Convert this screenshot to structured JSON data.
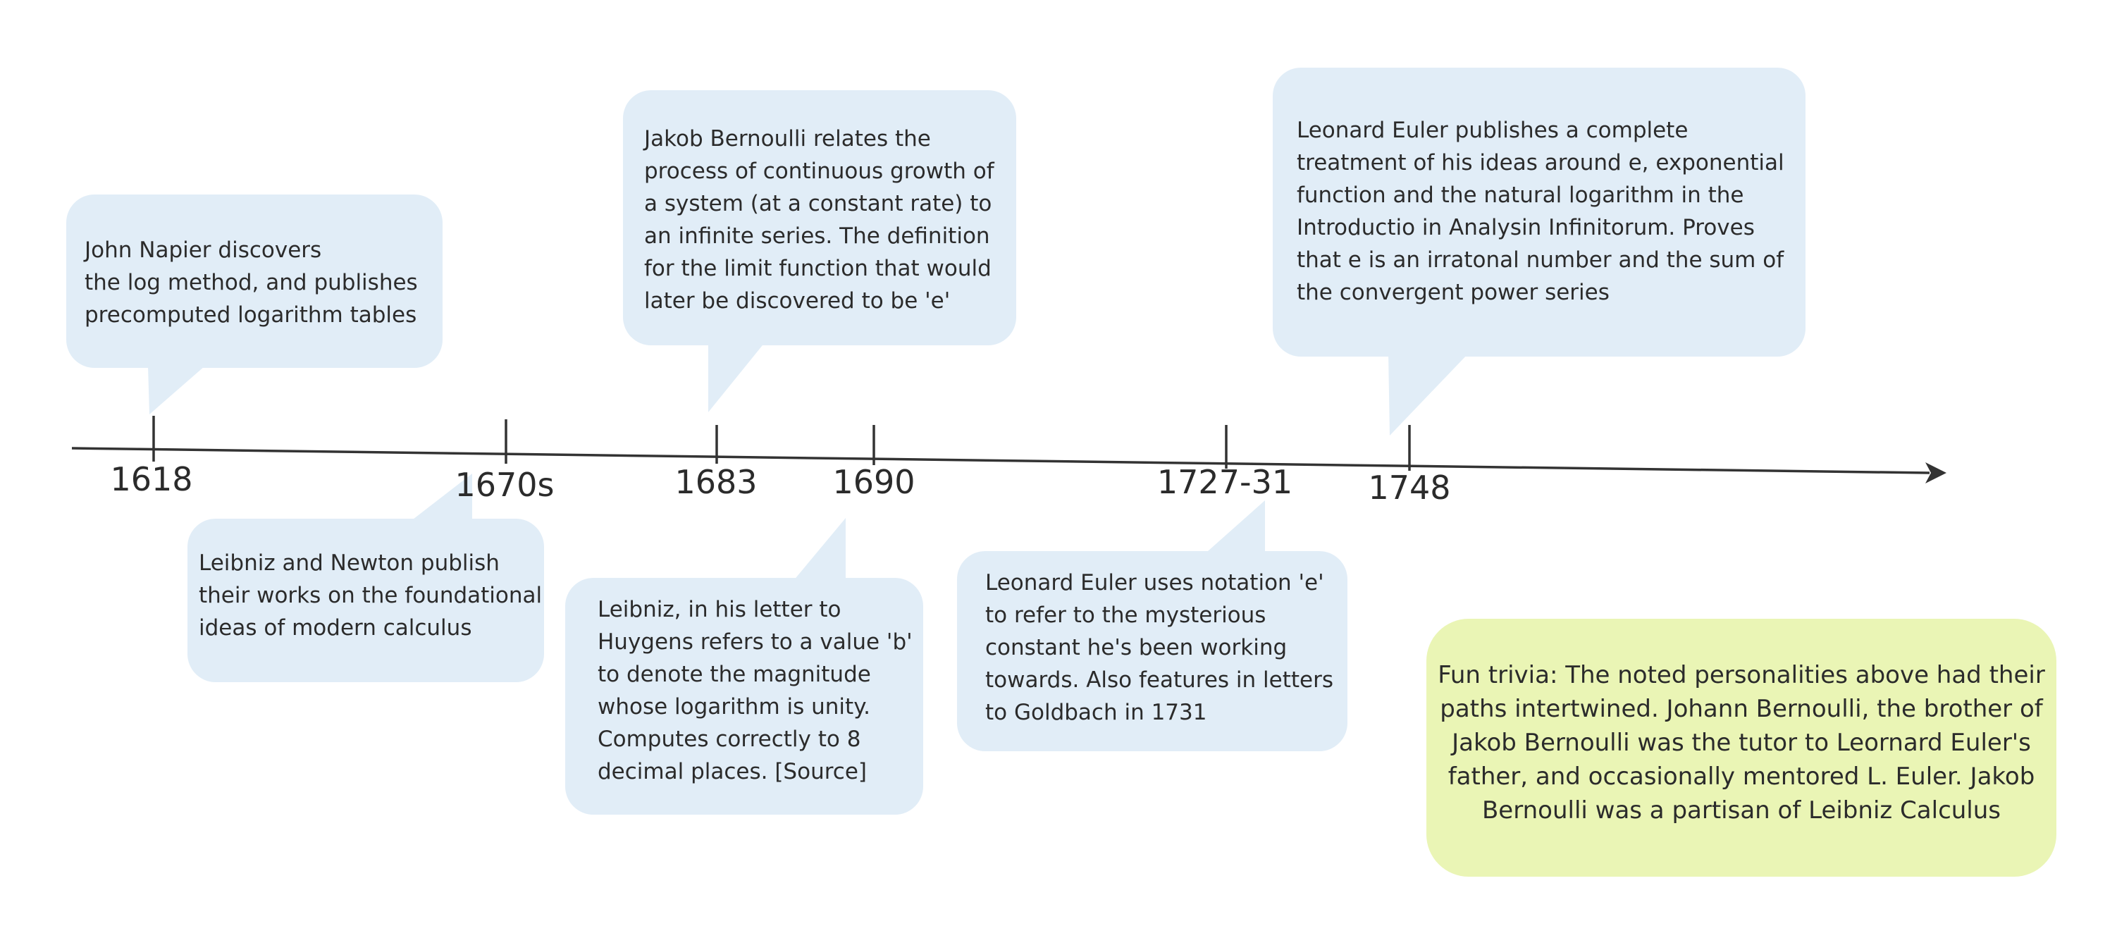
{
  "timeline": {
    "events": [
      {
        "year": "1618",
        "text": "John Napier discovers\n the log method, and publishes\nprecomputed logarithm tables"
      },
      {
        "year": "1670s",
        "text": "Leibniz and Newton publish\ntheir works on the foundational\nideas of modern calculus"
      },
      {
        "year": "1683",
        "text": "Jakob Bernoulli relates the\nprocess of continuous growth of\na system (at a constant rate) to\nan infinite series. The definition\nfor the limit function that would\nlater be discovered to be 'e'"
      },
      {
        "year": "1690",
        "text": "Leibniz, in his letter to\nHuygens refers to a value 'b'\nto denote the magnitude\nwhose logarithm is unity.\nComputes correctly to 8\ndecimal places. [Source]"
      },
      {
        "year": "1727-31",
        "text": "Leonard Euler uses notation 'e'\nto refer to the mysterious\nconstant he's been working\ntowards. Also features in letters\nto Goldbach in 1731"
      },
      {
        "year": "1748",
        "text": "Leonard Euler publishes a complete\ntreatment of his ideas around e, exponential\nfunction and the natural logarithm in the\nIntroductio in Analysin Infinitorum. Proves\nthat e is an irratonal number and the sum of\nthe convergent power series"
      }
    ],
    "trivia": "Fun trivia: The noted personalities above had their\npaths intertwined. Johann Bernoulli, the brother of\nJakob Bernoulli was the tutor to Leornard Euler's\nfather, and occasionally mentored L. Euler. Jakob\nBernoulli was a partisan of Leibniz Calculus"
  },
  "colors": {
    "bubble": "#e1edf7",
    "trivia": "#eaf5b5",
    "line": "#333333",
    "text": "#2b2b2b"
  }
}
